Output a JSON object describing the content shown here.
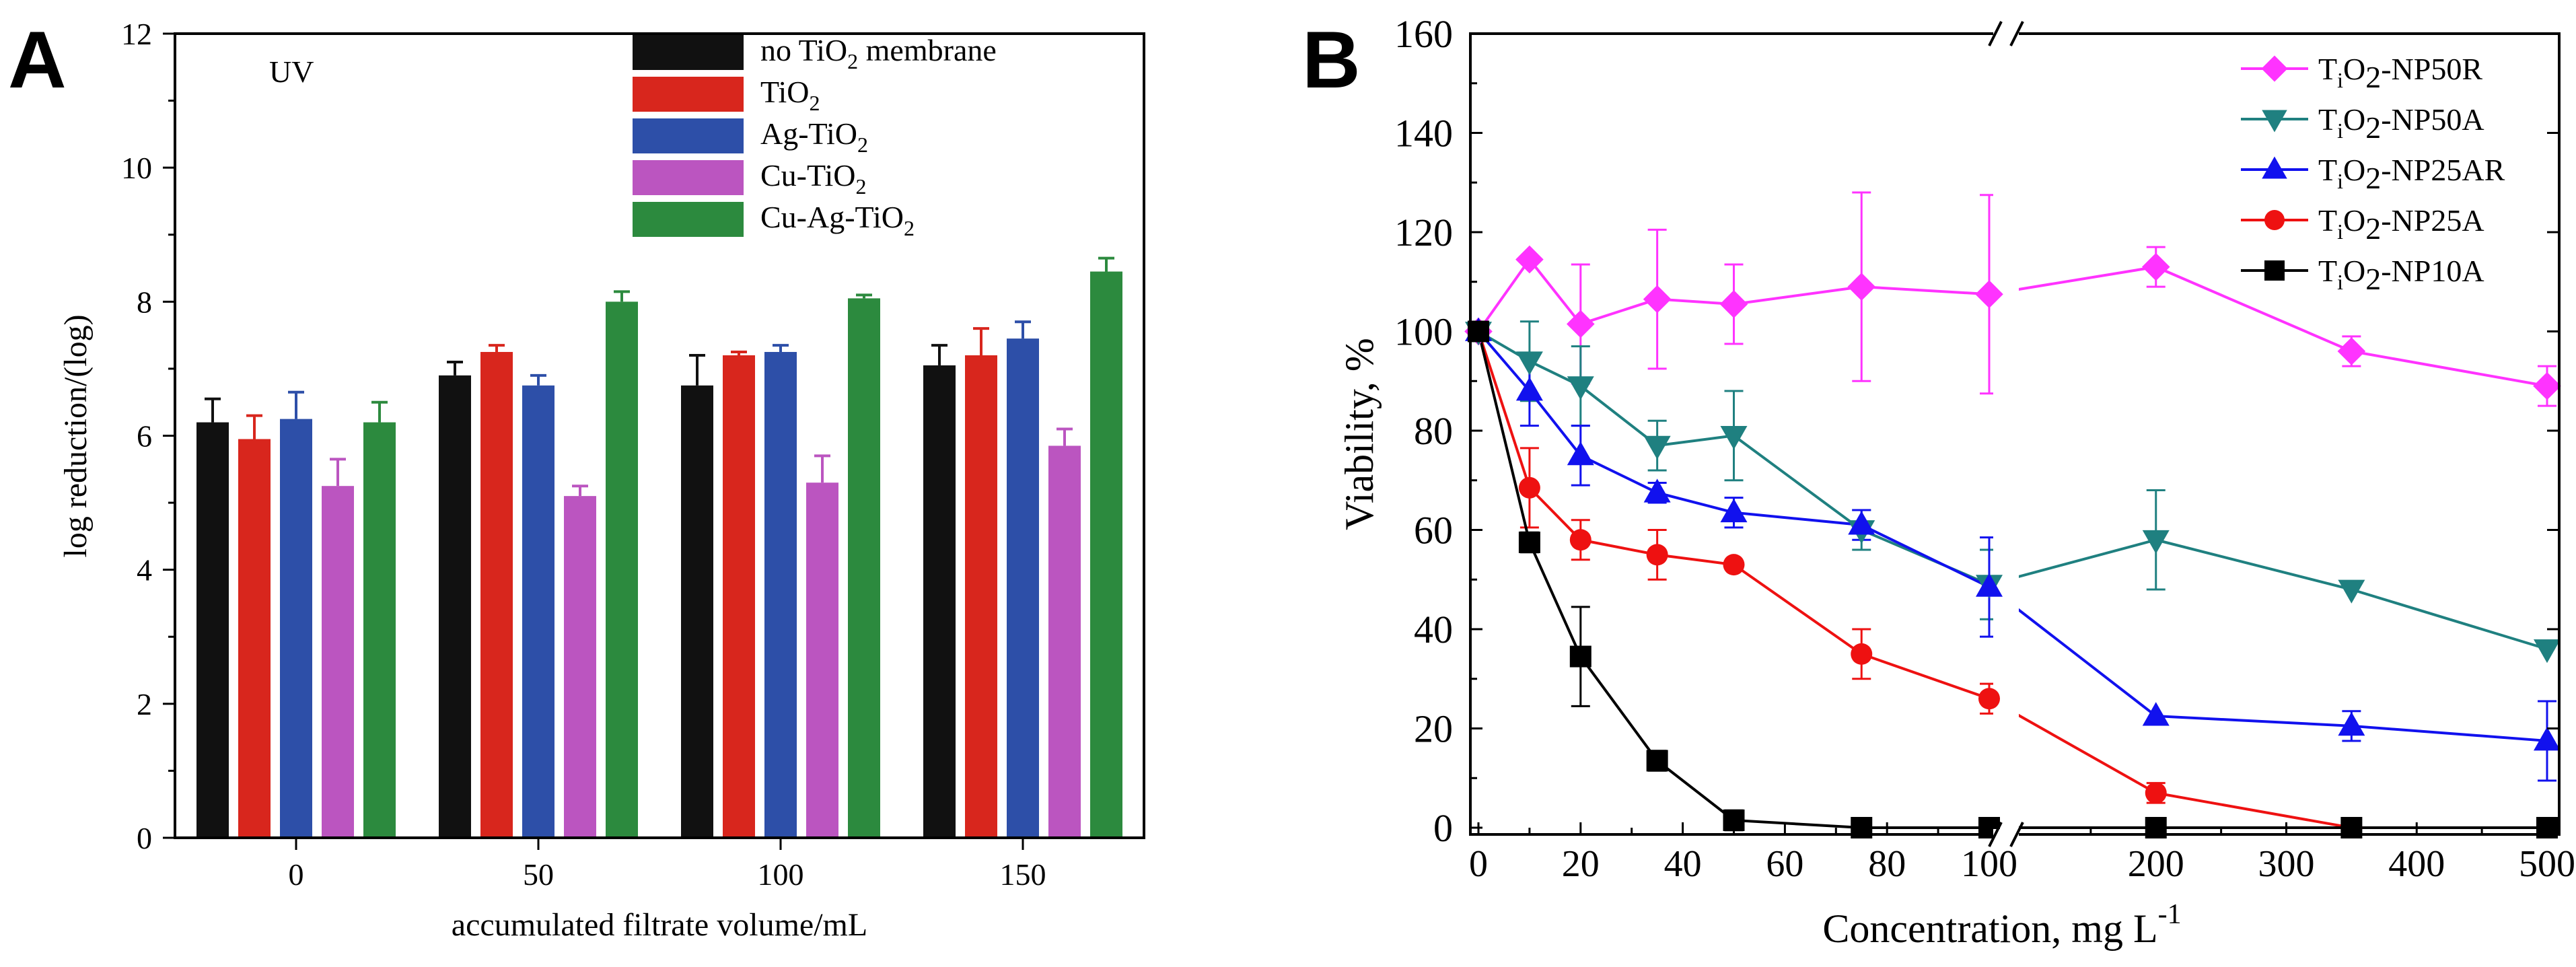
{
  "panel_labels": [
    "A",
    "B"
  ],
  "colors": {
    "no_tio2": "#111111",
    "tio2": "#d8261d",
    "ag_tio2": "#2d4fa8",
    "cu_tio2": "#bb55c0",
    "cu_ag_tio2": "#2c8a3e",
    "np50r": "#ff33ff",
    "np50a": "#1f8080",
    "np25ar": "#1111ee",
    "np25a": "#ee1111",
    "np10a": "#000000"
  },
  "chart_data": [
    {
      "type": "bar",
      "panel": "A",
      "annotation": "UV",
      "xlabel": "accumulated filtrate volume/mL",
      "ylabel": "log reduction/(log)",
      "ylim": [
        0,
        12
      ],
      "yticks": [
        "0",
        "2",
        "4",
        "6",
        "8",
        "10",
        "12"
      ],
      "categories": [
        "0",
        "50",
        "100",
        "150"
      ],
      "legend_position": "top-right",
      "series": [
        {
          "name": "no TiO2 membrane",
          "label_main": "no TiO",
          "label_sub": "2",
          "label_tail": " membrane",
          "values": [
            6.2,
            6.9,
            6.75,
            7.05
          ],
          "errors": [
            0.35,
            0.2,
            0.45,
            0.3
          ]
        },
        {
          "name": "TiO2",
          "label_main": "TiO",
          "label_sub": "2",
          "label_tail": "",
          "values": [
            5.95,
            7.25,
            7.2,
            7.2
          ],
          "errors": [
            0.35,
            0.1,
            0.05,
            0.4
          ]
        },
        {
          "name": "Ag-TiO2",
          "label_main": "Ag-TiO",
          "label_sub": "2",
          "label_tail": "",
          "values": [
            6.25,
            6.75,
            7.25,
            7.45
          ],
          "errors": [
            0.4,
            0.15,
            0.1,
            0.25
          ]
        },
        {
          "name": "Cu-TiO2",
          "label_main": "Cu-TiO",
          "label_sub": "2",
          "label_tail": "",
          "values": [
            5.25,
            5.1,
            5.3,
            5.85
          ],
          "errors": [
            0.4,
            0.15,
            0.4,
            0.25
          ]
        },
        {
          "name": "Cu-Ag-TiO2",
          "label_main": "Cu-Ag-TiO",
          "label_sub": "2",
          "label_tail": "",
          "values": [
            6.2,
            8.0,
            8.05,
            8.45
          ],
          "errors": [
            0.3,
            0.15,
            0.05,
            0.2
          ]
        }
      ]
    },
    {
      "type": "line",
      "panel": "B",
      "xlabel": "Concentration, mg L",
      "xlabel_sup": "-1",
      "ylabel": "Viability, %",
      "ylim": [
        0,
        160
      ],
      "yticks": [
        "0",
        "20",
        "40",
        "60",
        "80",
        "100",
        "120",
        "140",
        "160"
      ],
      "x_axis_broken": true,
      "xlim_left": [
        0,
        100
      ],
      "xlim_right": [
        100,
        500
      ],
      "xticks_left": [
        "0",
        "20",
        "40",
        "60",
        "80",
        "100"
      ],
      "xticks_right": [
        "200",
        "300",
        "400",
        "500"
      ],
      "legend_position": "top-right",
      "series": [
        {
          "name": "TiO2-NP50R",
          "label_a": "T",
          "label_a_sub": "i",
          "label_b": "O",
          "label_b_sub": "2",
          "label_tail": "-NP50R",
          "marker": "diamond",
          "x": [
            0,
            10,
            20,
            35,
            50,
            75,
            100,
            200,
            350,
            500
          ],
          "y": [
            100,
            114.5,
            101.5,
            106.5,
            105.5,
            109,
            107.5,
            113,
            96,
            89
          ],
          "err": [
            0,
            0,
            12,
            14,
            8,
            19,
            20,
            4,
            3,
            4
          ]
        },
        {
          "name": "TiO2-NP50A",
          "label_a": "T",
          "label_a_sub": "i",
          "label_b": "O",
          "label_b_sub": "2",
          "label_tail": "-NP50A",
          "marker": "triangle-down",
          "x": [
            0,
            10,
            20,
            35,
            50,
            75,
            100,
            200,
            350,
            500
          ],
          "y": [
            100,
            94,
            89,
            77,
            79,
            60,
            49,
            58,
            48,
            36
          ],
          "err": [
            0,
            8,
            8,
            5,
            9,
            4,
            7,
            10,
            0,
            0
          ]
        },
        {
          "name": "TiO2-NP25AR",
          "label_a": "T",
          "label_a_sub": "i",
          "label_b": "O",
          "label_b_sub": "2",
          "label_tail": "-NP25AR",
          "marker": "triangle-up",
          "x": [
            0,
            10,
            20,
            35,
            50,
            75,
            100,
            200,
            350,
            500
          ],
          "y": [
            100,
            88,
            75,
            67.5,
            63.5,
            61,
            48.5,
            22.5,
            20.5,
            17.5
          ],
          "err": [
            0,
            7,
            6,
            2,
            3,
            3,
            10,
            0,
            3,
            8
          ]
        },
        {
          "name": "TiO2-NP25A",
          "label_a": "T",
          "label_a_sub": "i",
          "label_b": "O",
          "label_b_sub": "2",
          "label_tail": "-NP25A",
          "marker": "circle",
          "x": [
            0,
            10,
            20,
            35,
            50,
            75,
            100,
            200,
            350,
            500
          ],
          "y": [
            100,
            68.5,
            58,
            55,
            53,
            35,
            26,
            7,
            0,
            0
          ],
          "err": [
            0,
            8,
            4,
            5,
            0,
            5,
            3,
            2,
            0,
            0
          ]
        },
        {
          "name": "TiO2-NP10A",
          "label_a": "T",
          "label_a_sub": "i",
          "label_b": "O",
          "label_b_sub": "2",
          "label_tail": "-NP10A",
          "marker": "square",
          "x": [
            0,
            10,
            20,
            35,
            50,
            75,
            100,
            200,
            350,
            500
          ],
          "y": [
            100,
            57.5,
            34.5,
            13.5,
            1.5,
            0,
            0,
            0,
            0,
            0
          ],
          "err": [
            0,
            2,
            10,
            2,
            2,
            0,
            0,
            0,
            0,
            0
          ]
        }
      ]
    }
  ]
}
